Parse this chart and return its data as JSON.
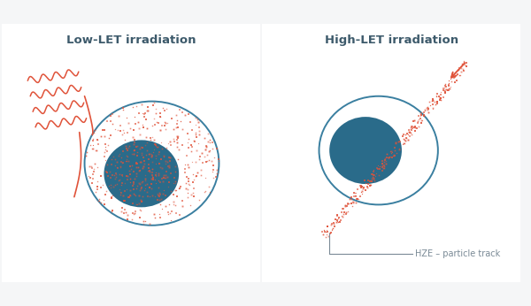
{
  "title_left": "Low-LET irradiation",
  "title_right": "High-LET irradiation",
  "title_color": "#3d5a6b",
  "title_fontsize": 9.5,
  "cell_outline_color": "#3a7fa0",
  "nucleus_color": "#2a6b8a",
  "damage_color": "#e0533a",
  "background_color": "#f5f6f7",
  "panel_bg": "#ffffff",
  "annotation_color": "#7a8a96",
  "wave_color": "#e0533a",
  "hze_label": "HZE – particle track",
  "border_color": "#c8d0d8"
}
